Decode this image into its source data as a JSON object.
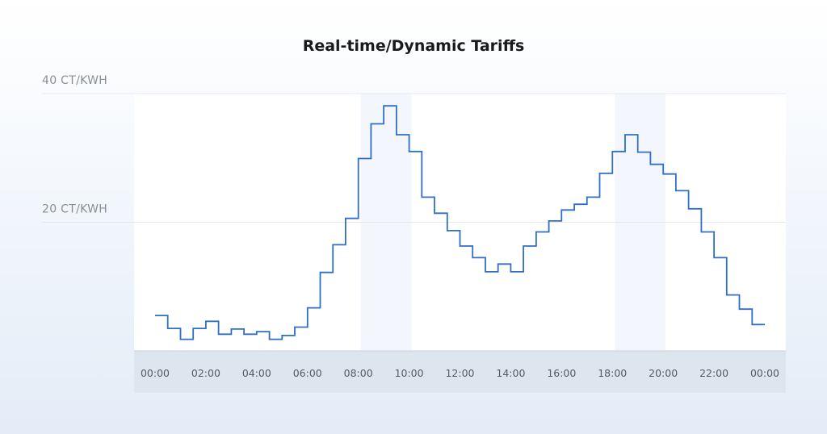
{
  "chart_data": {
    "type": "line",
    "step": true,
    "title": "Real-time/Dynamic Tariffs",
    "y_ticks": [
      {
        "value": 40,
        "label": "40 CT/KWH"
      },
      {
        "value": 20,
        "label": "20 CT/KWH"
      }
    ],
    "ylim": [
      0,
      40
    ],
    "xlim": [
      0,
      24
    ],
    "x_ticks": [
      {
        "value": 0,
        "label": "00:00"
      },
      {
        "value": 2,
        "label": "02:00"
      },
      {
        "value": 4,
        "label": "04:00"
      },
      {
        "value": 6,
        "label": "06:00"
      },
      {
        "value": 8,
        "label": "08:00"
      },
      {
        "value": 10,
        "label": "10:00"
      },
      {
        "value": 12,
        "label": "12:00"
      },
      {
        "value": 14,
        "label": "14:00"
      },
      {
        "value": 16,
        "label": "16:00"
      },
      {
        "value": 18,
        "label": "18:00"
      },
      {
        "value": 20,
        "label": "20:00"
      },
      {
        "value": 22,
        "label": "22:00"
      },
      {
        "value": 24,
        "label": "00:00"
      }
    ],
    "highlight_ranges": [
      [
        8,
        10
      ],
      [
        18,
        20
      ]
    ],
    "series": [
      {
        "line_color": "#2f6fc9",
        "interval_hours": 0.5,
        "values": [
          5.5,
          3.5,
          1.8,
          3.5,
          4.6,
          2.6,
          3.4,
          2.6,
          3.0,
          1.8,
          2.4,
          3.7,
          6.7,
          12.2,
          16.5,
          20.6,
          29.9,
          35.3,
          38.1,
          33.6,
          31.0,
          23.9,
          21.4,
          18.7,
          16.3,
          14.5,
          12.3,
          13.5,
          12.3,
          16.3,
          18.5,
          20.2,
          21.9,
          22.8,
          23.9,
          27.6,
          31.0,
          33.6,
          30.9,
          29.0,
          27.5,
          24.9,
          22.1,
          18.5,
          14.5,
          8.7,
          6.5,
          4.1
        ]
      }
    ],
    "colors": {
      "plot_background": "#ffffff",
      "highlight": "#f3f7fd",
      "grid": "#e4e8ee",
      "axis_band": "#dde5ef",
      "baseline": "#c9d1dc"
    }
  }
}
